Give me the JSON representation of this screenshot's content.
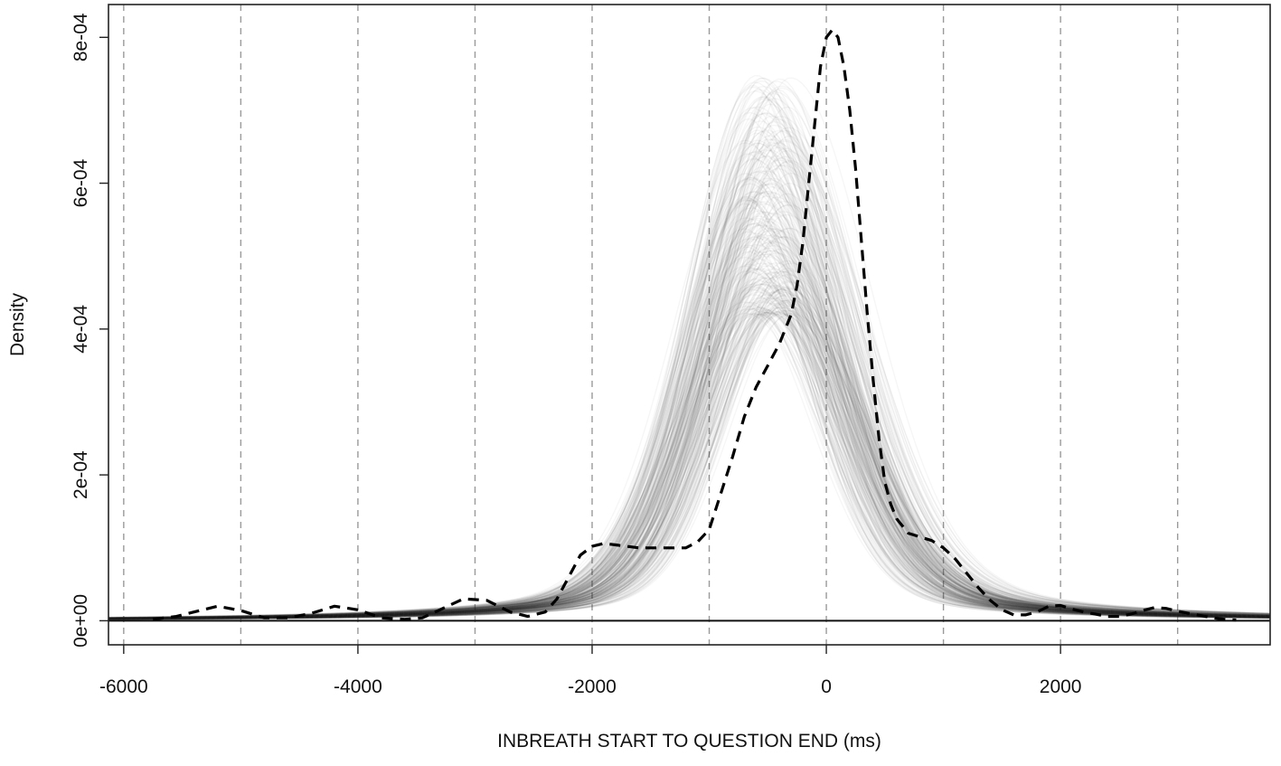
{
  "chart_data": {
    "type": "line",
    "xlabel": "INBREATH START TO QUESTION END (ms)",
    "ylabel": "Density",
    "xlim": [
      -6130,
      3790
    ],
    "ylim": [
      -3.3e-05,
      0.000845
    ],
    "x_ticks": [
      {
        "value": -6000,
        "label": "-6000"
      },
      {
        "value": -4000,
        "label": "-4000"
      },
      {
        "value": -2000,
        "label": "-2000"
      },
      {
        "value": 0,
        "label": "0"
      },
      {
        "value": 2000,
        "label": "2000"
      }
    ],
    "y_ticks": [
      {
        "value": 0,
        "label": "0e+00"
      },
      {
        "value": 0.0002,
        "label": "2e-04"
      },
      {
        "value": 0.0004,
        "label": "4e-04"
      },
      {
        "value": 0.0006,
        "label": "6e-04"
      },
      {
        "value": 0.0008,
        "label": "8e-04"
      }
    ],
    "vertical_gridlines": [
      -6000,
      -5000,
      -4000,
      -3000,
      -2000,
      -1000,
      0,
      1000,
      2000,
      3000
    ],
    "grid_style": "dashed vertical gray lines",
    "simulated_band": {
      "description": "many overlapping translucent gray density curves",
      "count": 300,
      "peak_location_range": [
        -700,
        -300
      ],
      "peak_height_range": [
        0.00042,
        0.00075
      ],
      "sd_left_range": [
        480,
        620
      ],
      "sd_right_range": [
        520,
        700
      ],
      "color": "#2a2a2a"
    },
    "series": [
      {
        "style": "dashed",
        "color": "#000000",
        "x": [
          -5750,
          -5550,
          -5400,
          -5200,
          -5000,
          -4800,
          -4600,
          -4400,
          -4200,
          -4000,
          -3800,
          -3600,
          -3450,
          -3300,
          -3100,
          -2900,
          -2700,
          -2550,
          -2400,
          -2300,
          -2200,
          -2100,
          -2000,
          -1900,
          -1800,
          -1600,
          -1400,
          -1200,
          -1100,
          -1000,
          -950,
          -900,
          -800,
          -700,
          -600,
          -500,
          -400,
          -300,
          -250,
          -200,
          -150,
          -100,
          -50,
          0,
          50,
          100,
          150,
          200,
          250,
          300,
          350,
          400,
          450,
          500,
          550,
          600,
          700,
          800,
          900,
          1000,
          1100,
          1200,
          1300,
          1400,
          1500,
          1600,
          1700,
          1800,
          1900,
          2000,
          2100,
          2200,
          2300,
          2400,
          2500,
          2600,
          2700,
          2800,
          2900,
          3000,
          3100,
          3200,
          3300,
          3400,
          3500
        ],
        "y": [
          2e-06,
          6e-06,
          1.2e-05,
          2e-05,
          1.4e-05,
          4e-06,
          4e-06,
          1e-05,
          2e-05,
          1.5e-05,
          4e-06,
          2e-06,
          4e-06,
          1.5e-05,
          3e-05,
          2.8e-05,
          1.2e-05,
          6e-06,
          1.2e-05,
          3e-05,
          6e-05,
          9e-05,
          0.000102,
          0.000106,
          0.000104,
          0.0001,
          0.0001,
          0.0001,
          0.000108,
          0.000125,
          0.00015,
          0.000175,
          0.000225,
          0.00028,
          0.00032,
          0.00035,
          0.00038,
          0.00042,
          0.00046,
          0.00052,
          0.0006,
          0.00068,
          0.00076,
          0.0008,
          0.00081,
          0.0008,
          0.00076,
          0.0007,
          0.00062,
          0.00052,
          0.00042,
          0.00033,
          0.00025,
          0.00019,
          0.00016,
          0.00014,
          0.00012,
          0.000115,
          0.00011,
          0.0001,
          8.5e-05,
          6.5e-05,
          4.5e-05,
          2.8e-05,
          1.5e-05,
          8e-06,
          8e-06,
          1.2e-05,
          2e-05,
          2.1e-05,
          1.6e-05,
          1.2e-05,
          9e-06,
          6e-06,
          6e-06,
          9e-06,
          1.4e-05,
          1.8e-05,
          1.7e-05,
          1.3e-05,
          1e-05,
          7e-06,
          4e-06,
          2e-06,
          1e-06
        ]
      }
    ]
  }
}
